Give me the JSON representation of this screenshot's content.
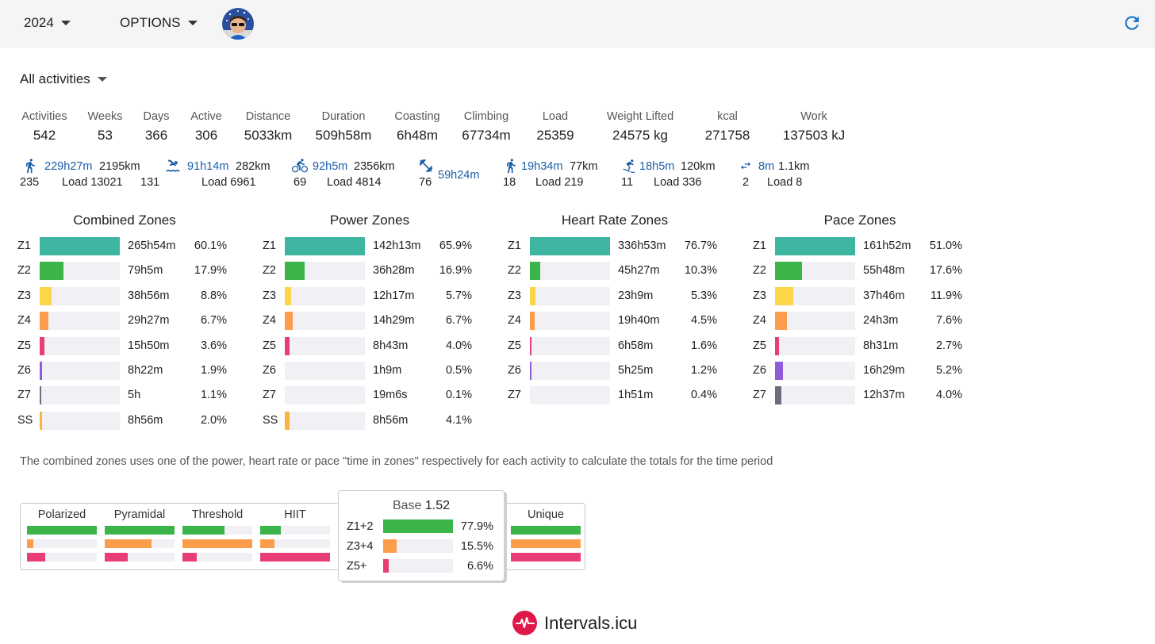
{
  "topbar": {
    "year": "2024",
    "options": "OPTIONS"
  },
  "filter": "All activities",
  "stats": [
    {
      "label": "Activities",
      "value": "542"
    },
    {
      "label": "Weeks",
      "value": "53"
    },
    {
      "label": "Days",
      "value": "366"
    },
    {
      "label": "Active",
      "value": "306"
    },
    {
      "label": "Distance",
      "value": "5033km"
    },
    {
      "label": "Duration",
      "value": "509h58m"
    },
    {
      "label": "Coasting",
      "value": "6h48m"
    },
    {
      "label": "Climbing",
      "value": "67734m"
    },
    {
      "label": "Load",
      "value": "25359"
    },
    {
      "label": "Weight Lifted",
      "value": "24575 kg"
    },
    {
      "label": "kcal",
      "value": "271758"
    },
    {
      "label": "Work",
      "value": "137503 kJ"
    }
  ],
  "sports": [
    {
      "icon": "run-icon",
      "time": "229h27m",
      "distance": "2195km",
      "count": "235",
      "load": "Load 13021"
    },
    {
      "icon": "swim-icon",
      "time": "91h14m",
      "distance": "282km",
      "count": "131",
      "load": "Load 6961"
    },
    {
      "icon": "bike-icon",
      "time": "92h5m",
      "distance": "2356km",
      "count": "69",
      "load": "Load 4814"
    },
    {
      "icon": "weights-icon",
      "time": "59h24m",
      "distance": "",
      "count": "76",
      "load": ""
    },
    {
      "icon": "walk-icon",
      "time": "19h34m",
      "distance": "77km",
      "count": "18",
      "load": "Load 219"
    },
    {
      "icon": "ski-icon",
      "time": "18h5m",
      "distance": "120km",
      "count": "11",
      "load": "Load 336"
    },
    {
      "icon": "transition-icon",
      "time": "8m",
      "distance": "1.1km",
      "count": "2",
      "load": "Load 8"
    }
  ],
  "zone_colors": {
    "Z1": "#3db5a0",
    "Z2": "#3bb54a",
    "Z3": "#fad648",
    "Z4": "#fb9d4a",
    "Z5": "#e83d75",
    "Z6": "#8e5bd9",
    "Z7": "#6c6c80",
    "SS": "#f9b53f"
  },
  "zones": [
    {
      "title": "Combined Zones",
      "rows": [
        {
          "zone": "Z1",
          "time": "265h54m",
          "pct": "60.1%",
          "fraction": 1.0
        },
        {
          "zone": "Z2",
          "time": "79h5m",
          "pct": "17.9%",
          "fraction": 0.3
        },
        {
          "zone": "Z3",
          "time": "38h56m",
          "pct": "8.8%",
          "fraction": 0.15
        },
        {
          "zone": "Z4",
          "time": "29h27m",
          "pct": "6.7%",
          "fraction": 0.11
        },
        {
          "zone": "Z5",
          "time": "15h50m",
          "pct": "3.6%",
          "fraction": 0.06
        },
        {
          "zone": "Z6",
          "time": "8h22m",
          "pct": "1.9%",
          "fraction": 0.03
        },
        {
          "zone": "Z7",
          "time": "5h",
          "pct": "1.1%",
          "fraction": 0.02
        },
        {
          "zone": "SS",
          "time": "8h56m",
          "pct": "2.0%",
          "fraction": 0.03
        }
      ]
    },
    {
      "title": "Power Zones",
      "rows": [
        {
          "zone": "Z1",
          "time": "142h13m",
          "pct": "65.9%",
          "fraction": 1.0
        },
        {
          "zone": "Z2",
          "time": "36h28m",
          "pct": "16.9%",
          "fraction": 0.25
        },
        {
          "zone": "Z3",
          "time": "12h17m",
          "pct": "5.7%",
          "fraction": 0.08
        },
        {
          "zone": "Z4",
          "time": "14h29m",
          "pct": "6.7%",
          "fraction": 0.1
        },
        {
          "zone": "Z5",
          "time": "8h43m",
          "pct": "4.0%",
          "fraction": 0.06
        },
        {
          "zone": "Z6",
          "time": "1h9m",
          "pct": "0.5%",
          "fraction": 0.0
        },
        {
          "zone": "Z7",
          "time": "19m6s",
          "pct": "0.1%",
          "fraction": 0.0
        },
        {
          "zone": "SS",
          "time": "8h56m",
          "pct": "4.1%",
          "fraction": 0.06
        }
      ]
    },
    {
      "title": "Heart Rate Zones",
      "rows": [
        {
          "zone": "Z1",
          "time": "336h53m",
          "pct": "76.7%",
          "fraction": 1.0
        },
        {
          "zone": "Z2",
          "time": "45h27m",
          "pct": "10.3%",
          "fraction": 0.13
        },
        {
          "zone": "Z3",
          "time": "23h9m",
          "pct": "5.3%",
          "fraction": 0.07
        },
        {
          "zone": "Z4",
          "time": "19h40m",
          "pct": "4.5%",
          "fraction": 0.06
        },
        {
          "zone": "Z5",
          "time": "6h58m",
          "pct": "1.6%",
          "fraction": 0.02
        },
        {
          "zone": "Z6",
          "time": "5h25m",
          "pct": "1.2%",
          "fraction": 0.016
        },
        {
          "zone": "Z7",
          "time": "1h51m",
          "pct": "0.4%",
          "fraction": 0.0
        }
      ]
    },
    {
      "title": "Pace Zones",
      "rows": [
        {
          "zone": "Z1",
          "time": "161h52m",
          "pct": "51.0%",
          "fraction": 1.0
        },
        {
          "zone": "Z2",
          "time": "55h48m",
          "pct": "17.6%",
          "fraction": 0.34
        },
        {
          "zone": "Z3",
          "time": "37h46m",
          "pct": "11.9%",
          "fraction": 0.23
        },
        {
          "zone": "Z4",
          "time": "24h3m",
          "pct": "7.6%",
          "fraction": 0.15
        },
        {
          "zone": "Z5",
          "time": "8h31m",
          "pct": "2.7%",
          "fraction": 0.05
        },
        {
          "zone": "Z6",
          "time": "16h29m",
          "pct": "5.2%",
          "fraction": 0.1
        },
        {
          "zone": "Z7",
          "time": "12h37m",
          "pct": "4.0%",
          "fraction": 0.08
        }
      ]
    }
  ],
  "note": "The combined zones uses one of the power, heart rate or pace \"time in zones\" respectively for each activity to calculate the totals for the time period",
  "distribution": {
    "colors": [
      "#3bb54a",
      "#fb9d4a",
      "#e83d75"
    ],
    "types": [
      {
        "label": "Polarized",
        "fractions": [
          1.0,
          0.09,
          0.26
        ]
      },
      {
        "label": "Pyramidal",
        "fractions": [
          1.0,
          0.67,
          0.33
        ]
      },
      {
        "label": "Threshold",
        "fractions": [
          0.6,
          1.0,
          0.2
        ]
      },
      {
        "label": "HIIT",
        "fractions": [
          0.3,
          0.2,
          1.0
        ]
      },
      {
        "label": "Unique",
        "fractions": [
          1.0,
          1.0,
          1.0
        ]
      }
    ]
  },
  "tooltip": {
    "title_prefix": "Base",
    "title_value": "1.52",
    "rows": [
      {
        "label": "Z1+2",
        "pct": "77.9%",
        "fraction": 1.0,
        "color": "#3bb54a"
      },
      {
        "label": "Z3+4",
        "pct": "15.5%",
        "fraction": 0.19,
        "color": "#fb9d4a"
      },
      {
        "label": "Z5+",
        "pct": "6.6%",
        "fraction": 0.08,
        "color": "#e83d75"
      }
    ]
  },
  "brand": "Intervals.icu"
}
